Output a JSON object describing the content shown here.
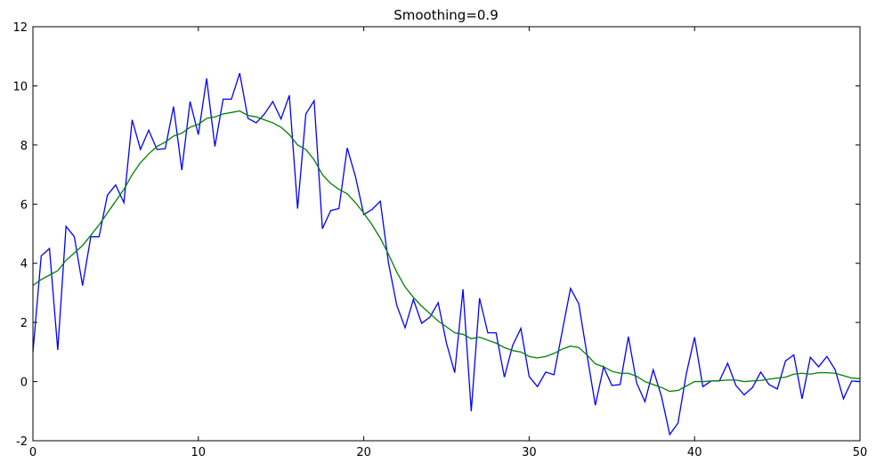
{
  "chart_data": {
    "type": "line",
    "title": "Smoothing=0.9",
    "x": [
      0,
      0.5,
      1,
      1.5,
      2,
      2.5,
      3,
      3.5,
      4,
      4.5,
      5,
      5.5,
      6,
      6.5,
      7,
      7.5,
      8,
      8.5,
      9,
      9.5,
      10,
      10.5,
      11,
      11.5,
      12,
      12.5,
      13,
      13.5,
      14,
      14.5,
      15,
      15.5,
      16,
      16.5,
      17,
      17.5,
      18,
      18.5,
      19,
      19.5,
      20,
      20.5,
      21,
      21.5,
      22,
      22.5,
      23,
      23.5,
      24,
      24.5,
      25,
      25.5,
      26,
      26.5,
      27,
      27.5,
      28,
      28.5,
      29,
      29.5,
      30,
      30.5,
      31,
      31.5,
      32,
      32.5,
      33,
      33.5,
      34,
      34.5,
      35,
      35.5,
      36,
      36.5,
      37,
      37.5,
      38,
      38.5,
      39,
      39.5,
      40,
      40.5,
      41,
      41.5,
      42,
      42.5,
      43,
      43.5,
      44,
      44.5,
      45,
      45.5,
      46,
      46.5,
      47,
      47.5,
      48,
      48.5,
      49,
      49.5,
      50
    ],
    "series": [
      {
        "color": "#0000ff",
        "values": [
          1.0,
          4.25,
          4.5,
          1.07,
          5.25,
          4.9,
          3.25,
          4.9,
          4.9,
          6.3,
          6.65,
          6.05,
          8.85,
          7.85,
          8.5,
          7.85,
          7.88,
          9.3,
          7.15,
          9.47,
          8.35,
          10.25,
          7.95,
          9.55,
          9.55,
          10.43,
          8.9,
          8.75,
          9.05,
          9.47,
          8.88,
          9.68,
          5.85,
          9.05,
          9.5,
          5.17,
          5.78,
          5.85,
          7.9,
          6.93,
          5.65,
          5.82,
          6.1,
          4.0,
          2.57,
          1.82,
          2.78,
          1.97,
          2.18,
          2.67,
          1.3,
          0.3,
          3.12,
          -1.0,
          2.82,
          1.65,
          1.65,
          0.15,
          1.22,
          1.8,
          0.17,
          -0.17,
          0.32,
          0.23,
          1.7,
          3.15,
          2.63,
          0.9,
          -0.8,
          0.5,
          -0.13,
          -0.1,
          1.52,
          -0.05,
          -0.68,
          0.4,
          -0.5,
          -1.79,
          -1.4,
          0.26,
          1.5,
          -0.17,
          0.02,
          0.02,
          0.62,
          -0.13,
          -0.45,
          -0.2,
          0.32,
          -0.1,
          -0.25,
          0.7,
          0.9,
          -0.58,
          0.82,
          0.5,
          0.85,
          0.4,
          -0.58,
          0.02,
          0.0
        ]
      },
      {
        "color": "#008000",
        "values": [
          3.25,
          3.45,
          3.6,
          3.75,
          4.1,
          4.35,
          4.6,
          4.95,
          5.3,
          5.7,
          6.1,
          6.5,
          7.0,
          7.4,
          7.7,
          7.95,
          8.1,
          8.3,
          8.4,
          8.6,
          8.7,
          8.9,
          8.95,
          9.05,
          9.1,
          9.15,
          9.0,
          8.95,
          8.85,
          8.75,
          8.6,
          8.35,
          8.0,
          7.85,
          7.5,
          7.0,
          6.7,
          6.5,
          6.35,
          6.05,
          5.7,
          5.3,
          4.85,
          4.3,
          3.7,
          3.2,
          2.85,
          2.55,
          2.3,
          2.05,
          1.85,
          1.65,
          1.6,
          1.45,
          1.5,
          1.4,
          1.3,
          1.15,
          1.05,
          1.0,
          0.85,
          0.8,
          0.85,
          0.95,
          1.1,
          1.2,
          1.15,
          0.9,
          0.6,
          0.5,
          0.35,
          0.28,
          0.28,
          0.18,
          0.0,
          -0.1,
          -0.2,
          -0.33,
          -0.3,
          -0.15,
          0.0,
          0.0,
          0.02,
          0.03,
          0.05,
          0.05,
          0.0,
          0.02,
          0.04,
          0.08,
          0.12,
          0.15,
          0.25,
          0.28,
          0.25,
          0.3,
          0.3,
          0.28,
          0.2,
          0.12,
          0.1
        ]
      }
    ],
    "xlim": [
      0,
      50
    ],
    "xticks": [
      0,
      10,
      20,
      30,
      40,
      50
    ],
    "ylim": [
      -2,
      12
    ],
    "yticks": [
      -2,
      0,
      2,
      4,
      6,
      8,
      10,
      12
    ]
  }
}
